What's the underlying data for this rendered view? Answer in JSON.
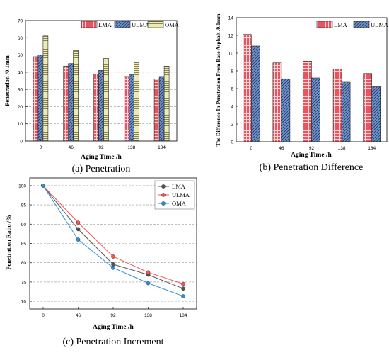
{
  "colors": {
    "lma": "#e85560",
    "ulma": "#6a8cc4",
    "oma": "#e4e2a6",
    "line_lma": "#555555",
    "line_ulma": "#ee5555",
    "line_oma": "#2a8fe0"
  },
  "chart_data": [
    {
      "id": "a",
      "type": "bar",
      "caption": "(a)  Penetration",
      "xlabel": "Aging Time /h",
      "ylabel": "Penetration /0.1mm",
      "categories": [
        "0",
        "46",
        "92",
        "138",
        "184"
      ],
      "ylim": [
        0,
        70
      ],
      "yticks": [
        "0",
        "10",
        "20",
        "30",
        "40",
        "50",
        "60",
        "70"
      ],
      "grid": true,
      "legend_position": "top",
      "series": [
        {
          "name": "LMA",
          "values": [
            49,
            43.5,
            39,
            37.5,
            36
          ]
        },
        {
          "name": "ULMA",
          "values": [
            50,
            45,
            41,
            38.5,
            37.5
          ]
        },
        {
          "name": "OMA",
          "values": [
            61,
            52.5,
            48,
            45.5,
            43.5
          ]
        }
      ]
    },
    {
      "id": "b",
      "type": "bar",
      "caption": "(b)  Penetration Difference",
      "xlabel": "Aging Time /h",
      "ylabel": "The Difference In Penetration From Base Asphalt /0.1mm",
      "categories": [
        "0",
        "46",
        "92",
        "138",
        "184"
      ],
      "ylim": [
        0,
        14
      ],
      "yticks": [
        "0",
        "2",
        "4",
        "6",
        "8",
        "10",
        "12",
        "14"
      ],
      "grid": false,
      "legend_position": "top-right",
      "series": [
        {
          "name": "LMA",
          "values": [
            12.1,
            8.9,
            9.1,
            8.2,
            7.7
          ]
        },
        {
          "name": "ULMA",
          "values": [
            10.8,
            7.1,
            7.2,
            6.8,
            6.2
          ]
        }
      ]
    },
    {
      "id": "c",
      "type": "line",
      "caption": "(c)  Penetration Increment",
      "xlabel": "Aging Time /h",
      "ylabel": "Penetration Ratio /%",
      "categories": [
        "0",
        "46",
        "92",
        "138",
        "184"
      ],
      "x": [
        0,
        46,
        92,
        138,
        184
      ],
      "ylim": [
        68,
        102
      ],
      "yticks": [
        "70",
        "75",
        "80",
        "85",
        "90",
        "95",
        "100"
      ],
      "grid": true,
      "legend_position": "top-right",
      "series": [
        {
          "name": "LMA",
          "values": [
            100,
            88.7,
            79.6,
            76.9,
            73.3
          ]
        },
        {
          "name": "ULMA",
          "values": [
            100,
            90.4,
            81.6,
            77.5,
            74.5
          ]
        },
        {
          "name": "OMA",
          "values": [
            100,
            86,
            78.7,
            74.7,
            71.3
          ]
        }
      ]
    }
  ]
}
